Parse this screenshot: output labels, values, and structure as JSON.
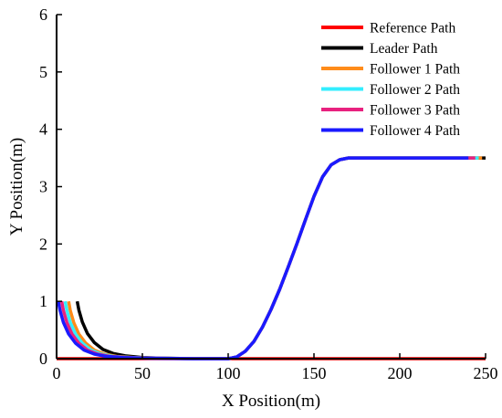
{
  "chart_data": {
    "type": "line",
    "title": "",
    "xlabel": "X Position(m)",
    "ylabel": "Y Position(m)",
    "xlim": [
      0,
      250
    ],
    "ylim": [
      0,
      6
    ],
    "xticks": [
      0,
      50,
      100,
      150,
      200,
      250
    ],
    "yticks": [
      0,
      1,
      2,
      3,
      4,
      5,
      6
    ],
    "grid": false,
    "legend_position": "top-right",
    "series": [
      {
        "name": "Reference Path",
        "color": "#ff0000",
        "x": [
          0,
          20,
          40,
          60,
          80,
          100,
          110,
          120,
          130,
          140,
          150,
          160,
          170,
          180,
          190,
          200,
          220,
          240,
          250
        ],
        "y": [
          0,
          0,
          0,
          0,
          0,
          0,
          0,
          0,
          0,
          0,
          0,
          0,
          0,
          0,
          0,
          0,
          0,
          0,
          0
        ]
      },
      {
        "name": "Leader Path",
        "color": "#000000",
        "x": [
          12,
          13,
          15,
          18,
          22,
          27,
          33,
          40,
          50,
          60,
          80,
          100,
          105,
          110,
          115,
          120,
          125,
          130,
          135,
          140,
          145,
          150,
          155,
          160,
          165,
          170,
          175,
          180,
          185,
          190,
          195,
          200,
          220,
          240,
          250
        ],
        "y": [
          1.0,
          0.85,
          0.64,
          0.44,
          0.28,
          0.16,
          0.09,
          0.05,
          0.02,
          0.01,
          0.0,
          0.0,
          0.03,
          0.13,
          0.3,
          0.55,
          0.86,
          1.21,
          1.6,
          2.0,
          2.42,
          2.83,
          3.17,
          3.38,
          3.47,
          3.5,
          3.5,
          3.5,
          3.5,
          3.5,
          3.5,
          3.5,
          3.5,
          3.5,
          3.5
        ]
      },
      {
        "name": "Follower 1 Path",
        "color": "#ff8c1a",
        "x": [
          7,
          8,
          10,
          13,
          17,
          22,
          28,
          35,
          45,
          55,
          80,
          100,
          105,
          110,
          115,
          120,
          125,
          130,
          135,
          140,
          145,
          150,
          155,
          160,
          165,
          170,
          175,
          180,
          185,
          190,
          195,
          200,
          220,
          240,
          248
        ],
        "y": [
          1.0,
          0.84,
          0.63,
          0.43,
          0.27,
          0.15,
          0.08,
          0.04,
          0.02,
          0.01,
          0.0,
          0.0,
          0.03,
          0.13,
          0.3,
          0.55,
          0.86,
          1.21,
          1.6,
          2.0,
          2.42,
          2.83,
          3.17,
          3.38,
          3.47,
          3.5,
          3.5,
          3.5,
          3.5,
          3.5,
          3.5,
          3.5,
          3.5,
          3.5,
          3.5
        ]
      },
      {
        "name": "Follower 2 Path",
        "color": "#33eeff",
        "x": [
          5,
          6,
          8,
          11,
          15,
          20,
          26,
          33,
          43,
          53,
          80,
          100,
          105,
          110,
          115,
          120,
          125,
          130,
          135,
          140,
          145,
          150,
          155,
          160,
          165,
          170,
          175,
          180,
          185,
          190,
          195,
          200,
          220,
          240,
          246
        ],
        "y": [
          1.0,
          0.84,
          0.63,
          0.43,
          0.27,
          0.15,
          0.08,
          0.04,
          0.02,
          0.01,
          0.0,
          0.0,
          0.03,
          0.13,
          0.3,
          0.55,
          0.86,
          1.21,
          1.6,
          2.0,
          2.42,
          2.83,
          3.17,
          3.38,
          3.47,
          3.5,
          3.5,
          3.5,
          3.5,
          3.5,
          3.5,
          3.5,
          3.5,
          3.5,
          3.5
        ]
      },
      {
        "name": "Follower 3 Path",
        "color": "#e8217f",
        "x": [
          3,
          4,
          6,
          9,
          13,
          18,
          24,
          31,
          41,
          51,
          80,
          100,
          105,
          110,
          115,
          120,
          125,
          130,
          135,
          140,
          145,
          150,
          155,
          160,
          165,
          170,
          175,
          180,
          185,
          190,
          195,
          200,
          220,
          240,
          244
        ],
        "y": [
          1.0,
          0.84,
          0.63,
          0.43,
          0.27,
          0.15,
          0.08,
          0.04,
          0.02,
          0.01,
          0.0,
          0.0,
          0.03,
          0.13,
          0.3,
          0.55,
          0.86,
          1.21,
          1.6,
          2.0,
          2.42,
          2.83,
          3.17,
          3.38,
          3.47,
          3.5,
          3.5,
          3.5,
          3.5,
          3.5,
          3.5,
          3.5,
          3.5,
          3.5,
          3.5
        ]
      },
      {
        "name": "Follower 4 Path",
        "color": "#1a1aff",
        "x": [
          1,
          2,
          4,
          7,
          11,
          16,
          22,
          29,
          39,
          49,
          80,
          100,
          105,
          110,
          115,
          120,
          125,
          130,
          135,
          140,
          145,
          150,
          155,
          160,
          165,
          170,
          175,
          180,
          185,
          190,
          195,
          200,
          220,
          240
        ],
        "y": [
          1.0,
          0.84,
          0.63,
          0.43,
          0.27,
          0.15,
          0.08,
          0.04,
          0.02,
          0.01,
          0.0,
          0.0,
          0.03,
          0.13,
          0.3,
          0.55,
          0.86,
          1.21,
          1.6,
          2.0,
          2.42,
          2.83,
          3.17,
          3.38,
          3.47,
          3.5,
          3.5,
          3.5,
          3.5,
          3.5,
          3.5,
          3.5,
          3.5,
          3.5
        ]
      }
    ]
  }
}
